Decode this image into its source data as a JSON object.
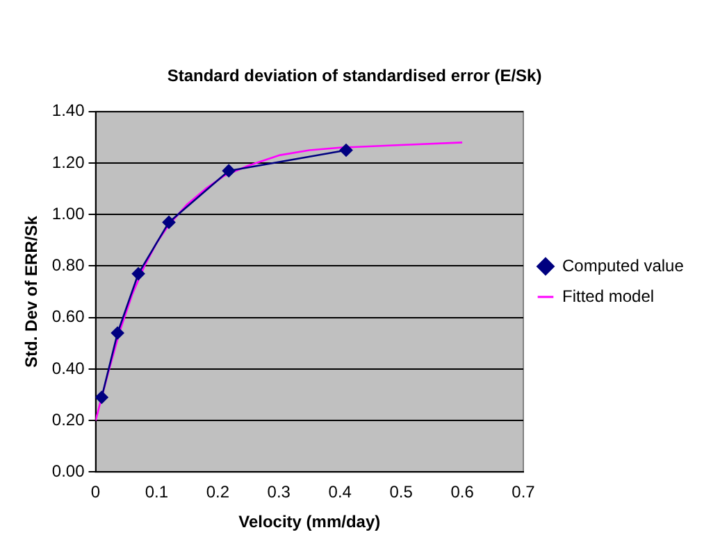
{
  "chart_data": {
    "type": "line",
    "title": "Standard deviation of standardised error (E/Sk)",
    "xlabel": "Velocity (mm/day)",
    "ylabel": "Std. Dev of ERR/Sk",
    "series": [
      {
        "name": "Computed value",
        "color": "#000080",
        "x": [
          0.01,
          0.036,
          0.07,
          0.12,
          0.218,
          0.41
        ],
        "values": [
          0.29,
          0.54,
          0.77,
          0.97,
          1.17,
          1.25
        ],
        "marker": "diamond"
      },
      {
        "name": "Fitted model",
        "color": "#ff00ff",
        "x": [
          0,
          0.02,
          0.04,
          0.06,
          0.08,
          0.1,
          0.12,
          0.15,
          0.18,
          0.21,
          0.25,
          0.3,
          0.35,
          0.4,
          0.5,
          0.6
        ],
        "values": [
          0.2,
          0.38,
          0.55,
          0.69,
          0.8,
          0.89,
          0.96,
          1.04,
          1.1,
          1.15,
          1.19,
          1.23,
          1.25,
          1.26,
          1.27,
          1.28
        ],
        "marker": "none"
      }
    ],
    "xlim": [
      0,
      0.7
    ],
    "xticks": [
      0,
      0.1,
      0.2,
      0.3,
      0.4,
      0.5,
      0.6,
      0.7
    ],
    "ylim": [
      0,
      1.4
    ],
    "yticks": [
      {
        "value": 0,
        "label": "0.00"
      },
      {
        "value": 0.2,
        "label": "0.20"
      },
      {
        "value": 0.4,
        "label": "0.40"
      },
      {
        "value": 0.6,
        "label": "0.60"
      },
      {
        "value": 0.8,
        "label": "0.80"
      },
      {
        "value": 1,
        "label": "1.00"
      },
      {
        "value": 1.2,
        "label": "1.20"
      },
      {
        "value": 1.4,
        "label": "1.40"
      }
    ],
    "grid": "y",
    "legend": "right",
    "line_style": "solid"
  }
}
